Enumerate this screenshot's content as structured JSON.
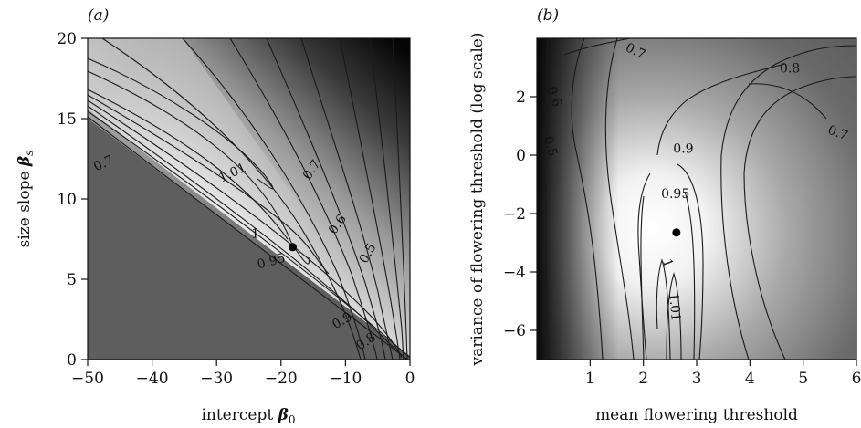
{
  "chart_data": [
    {
      "type": "heatmap",
      "panel_label": "(a)",
      "xlabel": "intercept ",
      "xlabel_symbol": "β",
      "xlabel_sub": "0",
      "ylabel": "size slope ",
      "ylabel_symbol": "β",
      "ylabel_sub": "s",
      "xlim": [
        -50,
        0
      ],
      "ylim": [
        0,
        20
      ],
      "xticks": [
        -50,
        -40,
        -30,
        -20,
        -10,
        0
      ],
      "yticks": [
        0,
        5,
        10,
        15,
        20
      ],
      "xtick_labels": [
        "−50",
        "−40",
        "−30",
        "−20",
        "−10",
        "0"
      ],
      "ytick_labels": [
        "0",
        "5",
        "10",
        "15",
        "20"
      ],
      "optimum": {
        "x": -18.2,
        "y": 7
      },
      "contour_labels": [
        {
          "text": "0.7",
          "x": -47.5,
          "y": 12.2,
          "angle": 25
        },
        {
          "text": "1.01",
          "x": -27.5,
          "y": 11.6,
          "angle": 25
        },
        {
          "text": "1",
          "x": -24,
          "y": 7.8,
          "angle": 0
        },
        {
          "text": "0.95",
          "x": -21.5,
          "y": 6.1,
          "angle": 15
        },
        {
          "text": "0.7",
          "x": -15.2,
          "y": 11.8,
          "angle": 55
        },
        {
          "text": "0.6",
          "x": -11.2,
          "y": 8.4,
          "angle": 55
        },
        {
          "text": "0.5",
          "x": -6.5,
          "y": 6.6,
          "angle": 60
        },
        {
          "text": "0.9",
          "x": -10.5,
          "y": 2.4,
          "angle": 30
        },
        {
          "text": "0.8",
          "x": -6.8,
          "y": 1.1,
          "angle": 35
        }
      ]
    },
    {
      "type": "heatmap",
      "panel_label": "(b)",
      "xlabel": "mean flowering threshold",
      "ylabel": "variance of flowering threshold (log scale)",
      "xlim": [
        0,
        6
      ],
      "ylim": [
        -7,
        4
      ],
      "xticks": [
        1,
        2,
        3,
        4,
        5,
        6
      ],
      "yticks": [
        -6,
        -4,
        -2,
        0,
        2
      ],
      "xtick_labels": [
        "1",
        "2",
        "3",
        "4",
        "5",
        "6"
      ],
      "ytick_labels": [
        "−6",
        "−4",
        "−2",
        "0",
        "2"
      ],
      "optimum": {
        "x": 2.62,
        "y": -2.65
      },
      "contour_labels": [
        {
          "text": "0.7",
          "x": 1.85,
          "y": 3.55,
          "angle": -25
        },
        {
          "text": "0.8",
          "x": 4.75,
          "y": 2.95,
          "angle": 0
        },
        {
          "text": "0.6",
          "x": 0.32,
          "y": 2.0,
          "angle": -70
        },
        {
          "text": "0.5",
          "x": 0.25,
          "y": 0.3,
          "angle": -75
        },
        {
          "text": "0.7",
          "x": 5.65,
          "y": 0.75,
          "angle": -20
        },
        {
          "text": "0.9",
          "x": 2.75,
          "y": 0.2,
          "angle": 0
        },
        {
          "text": "0.95",
          "x": 2.6,
          "y": -1.35,
          "angle": 0
        },
        {
          "text": "1",
          "x": 2.45,
          "y": -3.7,
          "angle": -70
        },
        {
          "text": "1.01",
          "x": 2.58,
          "y": -5.2,
          "angle": -85
        }
      ]
    }
  ]
}
